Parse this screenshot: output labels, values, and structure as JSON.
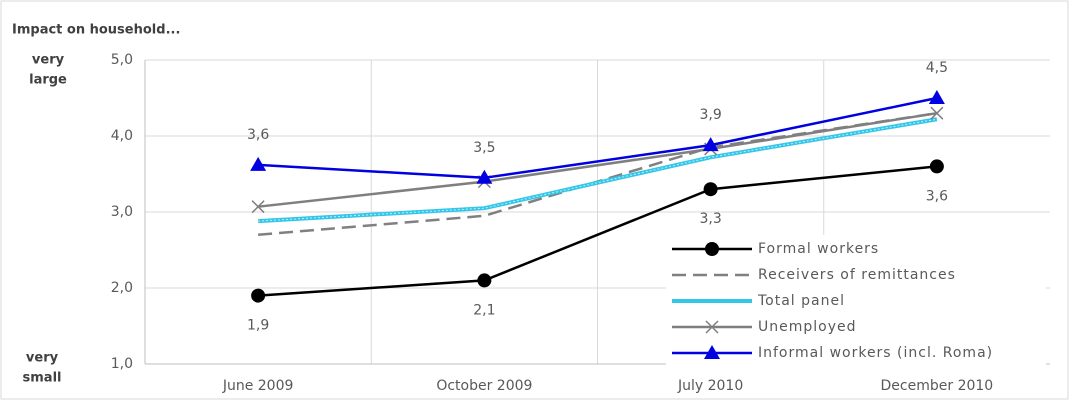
{
  "chart_data": {
    "type": "line",
    "title": "Impact on household...",
    "top_note": [
      "very",
      "large"
    ],
    "bottom_note": [
      "very",
      "small"
    ],
    "categories": [
      "June 2009",
      "October 2009",
      "July 2010",
      "December 2010"
    ],
    "ylim": [
      1,
      5
    ],
    "yticks": [
      {
        "value": 1,
        "label": "1,0"
      },
      {
        "value": 2,
        "label": "2,0"
      },
      {
        "value": 3,
        "label": "3,0"
      },
      {
        "value": 4,
        "label": "4,0"
      },
      {
        "value": 5,
        "label": "5,0"
      }
    ],
    "grid": true,
    "legend": "lower right",
    "series": [
      {
        "name": "Formal workers",
        "color": "#000000",
        "marker": "circle",
        "dash": false,
        "values": [
          1.9,
          2.1,
          3.3,
          3.6
        ],
        "value_labels": [
          "1,9",
          "2,1",
          "3,3",
          "3,6"
        ],
        "label_position": "below"
      },
      {
        "name": "Receivers of remittances",
        "color": "#808080",
        "marker": "none",
        "dash": true,
        "values": [
          2.7,
          2.95,
          3.85,
          4.3
        ]
      },
      {
        "name": "Total panel",
        "color": "#33c6e8",
        "marker": "none",
        "dash": false,
        "values": [
          2.88,
          3.05,
          3.72,
          4.22
        ]
      },
      {
        "name": "Unemployed",
        "color": "#7f7f7f",
        "marker": "x",
        "dash": false,
        "values": [
          3.07,
          3.4,
          3.83,
          4.3
        ]
      },
      {
        "name": "Informal workers (incl. Roma)",
        "color": "#0000e0",
        "marker": "triangle",
        "dash": false,
        "values": [
          3.62,
          3.45,
          3.88,
          4.5
        ],
        "value_labels": [
          "3,6",
          "3,5",
          "3,9",
          "4,5"
        ],
        "label_position": "above"
      }
    ]
  }
}
